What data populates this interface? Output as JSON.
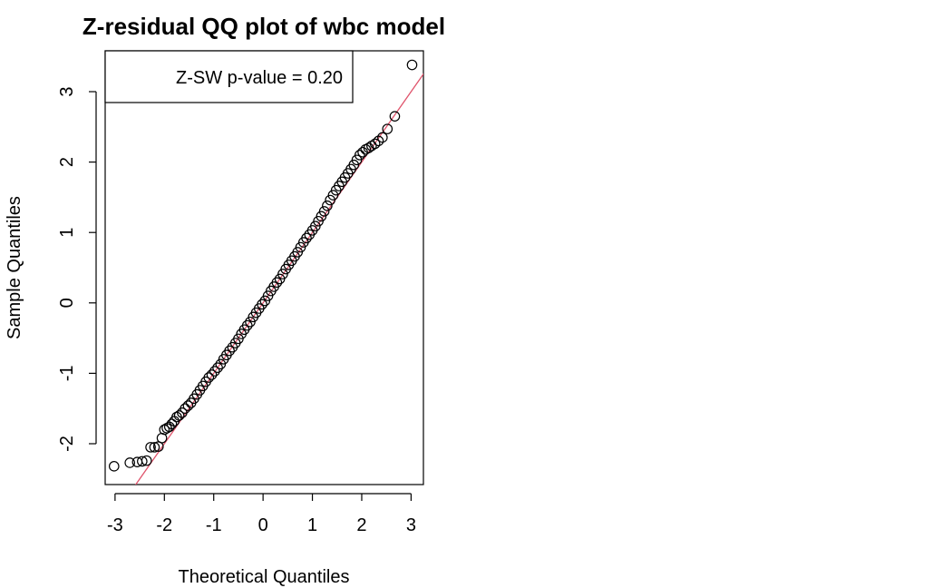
{
  "chart_data": {
    "type": "scatter",
    "title": "Z-residual QQ plot of wbc model",
    "xlabel": "Theoretical Quantiles",
    "ylabel": "Sample Quantiles",
    "xlim": [
      -3.2,
      3.25
    ],
    "ylim": [
      -2.58,
      3.58
    ],
    "x_ticks": [
      -3,
      -2,
      -1,
      0,
      1,
      2,
      3
    ],
    "x_tick_labels": [
      "-3",
      "-2",
      "-1",
      "0",
      "1",
      "2",
      "3"
    ],
    "y_ticks": [
      -2,
      -1,
      0,
      1,
      2,
      3
    ],
    "y_tick_labels": [
      "-2",
      "-1",
      "0",
      "1",
      "2",
      "3"
    ],
    "grid": false,
    "legend": {
      "text": "Z-SW p-value = 0.20",
      "placement": "top-left"
    },
    "reference_line": {
      "intercept": 0.0,
      "slope": 1.0,
      "color": "#DF536B"
    },
    "point_style": {
      "shape": "open-circle",
      "color": "#000000"
    },
    "points": [
      [
        -3.02,
        -2.32
      ],
      [
        -2.7,
        -2.27
      ],
      [
        -2.55,
        -2.26
      ],
      [
        -2.45,
        -2.25
      ],
      [
        -2.36,
        -2.24
      ],
      [
        -2.28,
        -2.05
      ],
      [
        -2.2,
        -2.05
      ],
      [
        -2.12,
        -2.04
      ],
      [
        -2.05,
        -1.92
      ],
      [
        -2.0,
        -1.8
      ],
      [
        -1.95,
        -1.78
      ],
      [
        -1.9,
        -1.76
      ],
      [
        -1.85,
        -1.72
      ],
      [
        -1.8,
        -1.68
      ],
      [
        -1.75,
        -1.62
      ],
      [
        -1.7,
        -1.6
      ],
      [
        -1.64,
        -1.56
      ],
      [
        -1.58,
        -1.5
      ],
      [
        -1.52,
        -1.46
      ],
      [
        -1.46,
        -1.42
      ],
      [
        -1.4,
        -1.36
      ],
      [
        -1.34,
        -1.3
      ],
      [
        -1.28,
        -1.24
      ],
      [
        -1.22,
        -1.18
      ],
      [
        -1.16,
        -1.12
      ],
      [
        -1.1,
        -1.06
      ],
      [
        -1.04,
        -1.02
      ],
      [
        -0.98,
        -0.97
      ],
      [
        -0.92,
        -0.92
      ],
      [
        -0.86,
        -0.87
      ],
      [
        -0.8,
        -0.8
      ],
      [
        -0.74,
        -0.74
      ],
      [
        -0.68,
        -0.68
      ],
      [
        -0.62,
        -0.63
      ],
      [
        -0.56,
        -0.57
      ],
      [
        -0.5,
        -0.51
      ],
      [
        -0.44,
        -0.44
      ],
      [
        -0.38,
        -0.38
      ],
      [
        -0.32,
        -0.32
      ],
      [
        -0.26,
        -0.27
      ],
      [
        -0.2,
        -0.2
      ],
      [
        -0.14,
        -0.14
      ],
      [
        -0.08,
        -0.08
      ],
      [
        -0.02,
        -0.02
      ],
      [
        0.04,
        0.03
      ],
      [
        0.1,
        0.1
      ],
      [
        0.16,
        0.17
      ],
      [
        0.22,
        0.23
      ],
      [
        0.28,
        0.29
      ],
      [
        0.34,
        0.34
      ],
      [
        0.4,
        0.41
      ],
      [
        0.46,
        0.48
      ],
      [
        0.52,
        0.54
      ],
      [
        0.58,
        0.6
      ],
      [
        0.64,
        0.66
      ],
      [
        0.7,
        0.72
      ],
      [
        0.76,
        0.79
      ],
      [
        0.82,
        0.86
      ],
      [
        0.88,
        0.92
      ],
      [
        0.94,
        0.97
      ],
      [
        1.0,
        1.03
      ],
      [
        1.06,
        1.09
      ],
      [
        1.12,
        1.16
      ],
      [
        1.18,
        1.23
      ],
      [
        1.24,
        1.3
      ],
      [
        1.3,
        1.38
      ],
      [
        1.36,
        1.46
      ],
      [
        1.42,
        1.53
      ],
      [
        1.48,
        1.6
      ],
      [
        1.54,
        1.66
      ],
      [
        1.6,
        1.72
      ],
      [
        1.66,
        1.78
      ],
      [
        1.72,
        1.84
      ],
      [
        1.78,
        1.9
      ],
      [
        1.84,
        1.96
      ],
      [
        1.9,
        2.03
      ],
      [
        1.96,
        2.1
      ],
      [
        2.02,
        2.14
      ],
      [
        2.08,
        2.18
      ],
      [
        2.14,
        2.2
      ],
      [
        2.2,
        2.23
      ],
      [
        2.27,
        2.26
      ],
      [
        2.34,
        2.3
      ],
      [
        2.42,
        2.35
      ],
      [
        2.52,
        2.47
      ],
      [
        2.67,
        2.65
      ],
      [
        3.02,
        3.38
      ]
    ]
  }
}
